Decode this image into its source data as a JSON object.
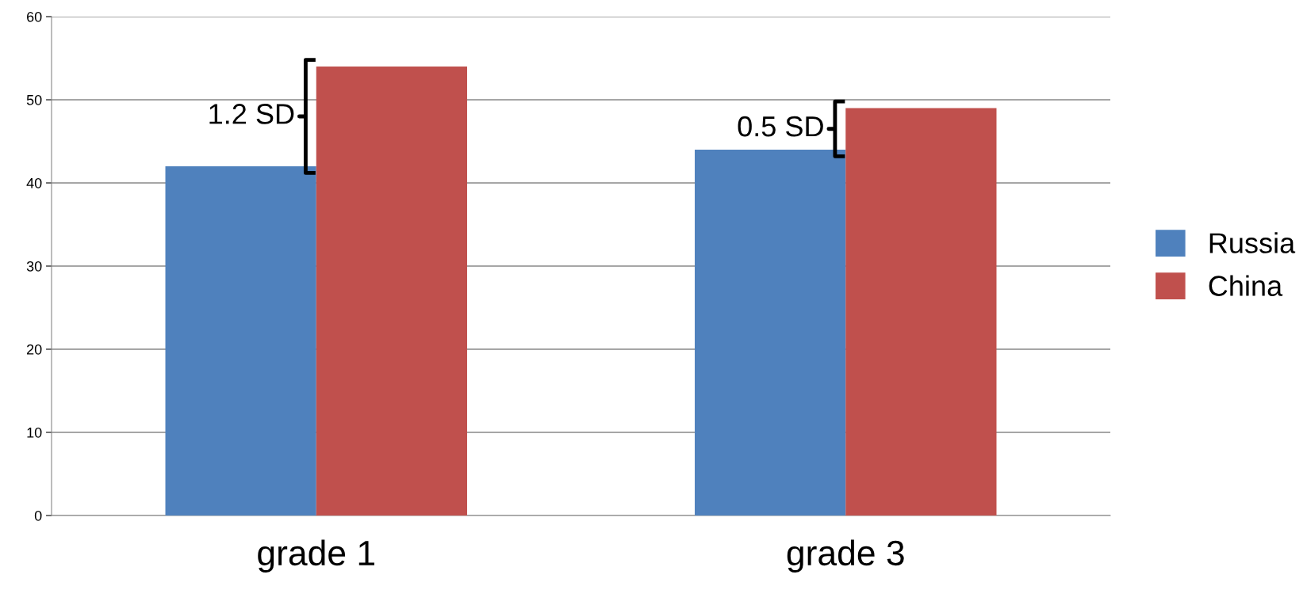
{
  "chart_data": {
    "type": "bar",
    "categories": [
      "grade 1",
      "grade 3"
    ],
    "series": [
      {
        "name": "Russia",
        "color": "#4f81bd",
        "values": [
          42,
          44
        ]
      },
      {
        "name": "China",
        "color": "#c0504d",
        "values": [
          54,
          49
        ]
      }
    ],
    "ylim": [
      0,
      60
    ],
    "yticks": [
      0,
      10,
      20,
      30,
      40,
      50,
      60
    ],
    "grid": "y",
    "legend": "right",
    "annotations": [
      "1.2 SD",
      "0.5 SD"
    ]
  }
}
